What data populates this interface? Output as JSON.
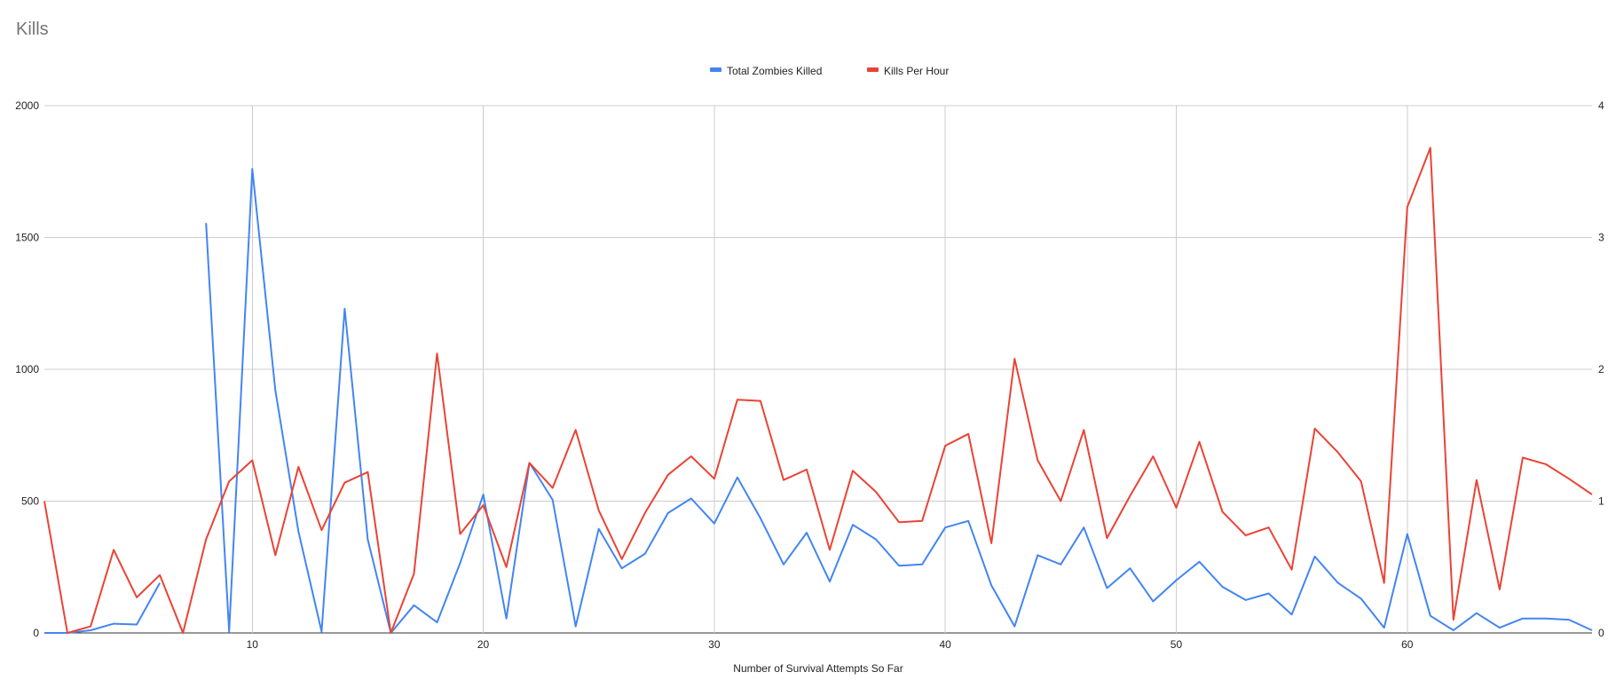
{
  "chart_data": {
    "type": "line",
    "title": "Kills",
    "xlabel": "Number of Survival Attempts So Far",
    "ylabel": "",
    "y2label": "",
    "x": [
      1,
      2,
      3,
      4,
      5,
      6,
      7,
      8,
      9,
      10,
      11,
      12,
      13,
      14,
      15,
      16,
      17,
      18,
      19,
      20,
      21,
      22,
      23,
      24,
      25,
      26,
      27,
      28,
      29,
      30,
      31,
      32,
      33,
      34,
      35,
      36,
      37,
      38,
      39,
      40,
      41,
      42,
      43,
      44,
      45,
      46,
      47,
      48,
      49,
      50,
      51,
      52,
      53,
      54,
      55,
      56,
      57,
      58,
      59,
      60,
      61,
      62,
      63,
      64,
      65,
      66,
      67,
      68
    ],
    "xlim": [
      1,
      68
    ],
    "xticks": [
      10,
      20,
      30,
      40,
      50,
      60
    ],
    "ylim": [
      0,
      2000
    ],
    "yticks": [
      0,
      500,
      1000,
      1500,
      2000
    ],
    "y2lim": [
      0,
      4
    ],
    "y2ticks": [
      0,
      1,
      2,
      3,
      4
    ],
    "grid": true,
    "legend_position": "top-center",
    "series": [
      {
        "name": "Total Zombies Killed",
        "axis": "left",
        "color": "#4285f4",
        "values": [
          0,
          0,
          10,
          35,
          32,
          190,
          null,
          1555,
          5,
          1760,
          920,
          385,
          5,
          1230,
          355,
          0,
          105,
          40,
          265,
          525,
          55,
          645,
          505,
          25,
          395,
          245,
          300,
          455,
          510,
          415,
          590,
          435,
          260,
          380,
          195,
          410,
          355,
          255,
          260,
          400,
          425,
          180,
          25,
          295,
          260,
          400,
          170,
          245,
          120,
          200,
          270,
          175,
          125,
          150,
          70,
          290,
          190,
          130,
          20,
          375,
          65,
          10,
          75,
          20,
          55,
          55,
          50,
          10
        ]
      },
      {
        "name": "Kills Per Hour",
        "axis": "right",
        "color": "#ea4335",
        "values": [
          1.0,
          0.0,
          0.05,
          0.63,
          0.27,
          0.44,
          0.0,
          0.71,
          1.15,
          1.31,
          0.59,
          1.26,
          0.78,
          1.14,
          1.22,
          0.0,
          0.45,
          2.12,
          0.75,
          0.97,
          0.5,
          1.29,
          1.1,
          1.54,
          0.93,
          0.56,
          0.91,
          1.2,
          1.34,
          1.17,
          1.77,
          1.76,
          1.16,
          1.24,
          0.63,
          1.23,
          1.07,
          0.84,
          0.85,
          1.42,
          1.51,
          0.68,
          2.08,
          1.31,
          1.0,
          1.54,
          0.72,
          1.04,
          1.34,
          0.95,
          1.45,
          0.92,
          0.74,
          0.8,
          0.48,
          1.55,
          1.37,
          1.15,
          0.38,
          3.23,
          3.68,
          0.1,
          1.16,
          0.33,
          1.33,
          1.28,
          1.17,
          1.05
        ]
      }
    ]
  }
}
